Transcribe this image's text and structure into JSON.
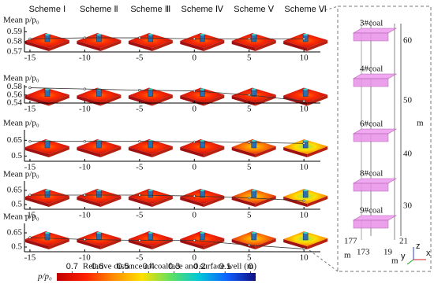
{
  "chart_data": [
    {
      "type": "line",
      "ylabel": "Mean p/p₀",
      "x": [
        -15,
        -10,
        -5,
        0,
        5,
        10
      ],
      "xlim": [
        -15.5,
        11.5
      ],
      "xticks": [
        -15,
        -10,
        -5,
        0,
        5,
        10
      ],
      "ylim": [
        0.57,
        0.595
      ],
      "yticks": [
        0.57,
        0.58,
        0.59
      ],
      "color": "#333333",
      "values": [
        0.583,
        0.584,
        0.584,
        0.583,
        0.583,
        0.583
      ]
    },
    {
      "type": "line",
      "ylabel": "Mean p/p₀",
      "x": [
        -15,
        -10,
        -5,
        0,
        5,
        10
      ],
      "xlim": [
        -15.5,
        11.5
      ],
      "xticks": [
        -15,
        -10,
        -5,
        0,
        5,
        10
      ],
      "ylim": [
        0.54,
        0.585
      ],
      "yticks": [
        0.54,
        0.56,
        0.58
      ],
      "color": "#333333",
      "values": [
        0.578,
        0.575,
        0.572,
        0.57,
        0.56,
        0.545
      ]
    },
    {
      "type": "line",
      "ylabel": "Mean p/p₀",
      "x": [
        -15,
        -10,
        -5,
        0,
        5,
        10
      ],
      "xlim": [
        -15.5,
        11.5
      ],
      "xticks": [
        -15,
        -10,
        -5,
        0,
        5,
        10
      ],
      "ylim": [
        0.45,
        0.75
      ],
      "yticks": [
        0.5,
        0.65
      ],
      "color": "#333333",
      "values": [
        0.64,
        0.64,
        0.64,
        0.635,
        0.63,
        0.62
      ]
    },
    {
      "type": "line",
      "ylabel": "Mean p/p₀",
      "x": [
        -15,
        -10,
        -5,
        0,
        5,
        10
      ],
      "xlim": [
        -15.5,
        11.5
      ],
      "xticks": [
        -15,
        -10,
        -5,
        0,
        5,
        10
      ],
      "ylim": [
        0.45,
        0.75
      ],
      "yticks": [
        0.5,
        0.65
      ],
      "color": "#333333",
      "values": [
        0.6,
        0.6,
        0.6,
        0.59,
        0.57,
        0.54
      ]
    },
    {
      "type": "line",
      "ylabel": "Mean p/p₀",
      "x": [
        -15,
        -10,
        -5,
        0,
        5,
        10
      ],
      "xlim": [
        -15.5,
        11.5
      ],
      "xticks": [
        -15,
        -10,
        -5,
        0,
        5,
        10
      ],
      "ylim": [
        0.45,
        0.75
      ],
      "yticks": [
        0.5,
        0.65
      ],
      "color": "#333333",
      "values": [
        0.6,
        0.58,
        0.57,
        0.57,
        0.52,
        0.48
      ],
      "xlabel": "Relative distance of coalface and surface well (m)"
    }
  ],
  "schemes": [
    "Scheme Ⅰ",
    "Scheme Ⅱ",
    "Scheme Ⅲ",
    "Scheme Ⅳ",
    "Scheme Ⅴ",
    "Scheme Ⅵ"
  ],
  "colorbar": {
    "label": "p/p₀",
    "lim": [
      0.76,
      -0.02
    ],
    "ticks": [
      0.7,
      0.6,
      0.5,
      0.4,
      0.3,
      0.2,
      0.1,
      0
    ],
    "colors": [
      "#c00000",
      "#ff2000",
      "#ff8c00",
      "#ffe000",
      "#60e060",
      "#00c8d8",
      "#1060ff",
      "#101080"
    ]
  },
  "diagram": {
    "seams": [
      "3#coal",
      "4#coal",
      "6#coal",
      "8#coal",
      "9#coal"
    ],
    "depth_ticks": [
      60,
      50,
      40,
      30
    ],
    "depth_unit": "m",
    "base_labels": [
      177,
      173,
      19,
      21
    ],
    "base_units": [
      "m",
      "m"
    ],
    "axes": [
      "x",
      "y",
      "z"
    ]
  }
}
